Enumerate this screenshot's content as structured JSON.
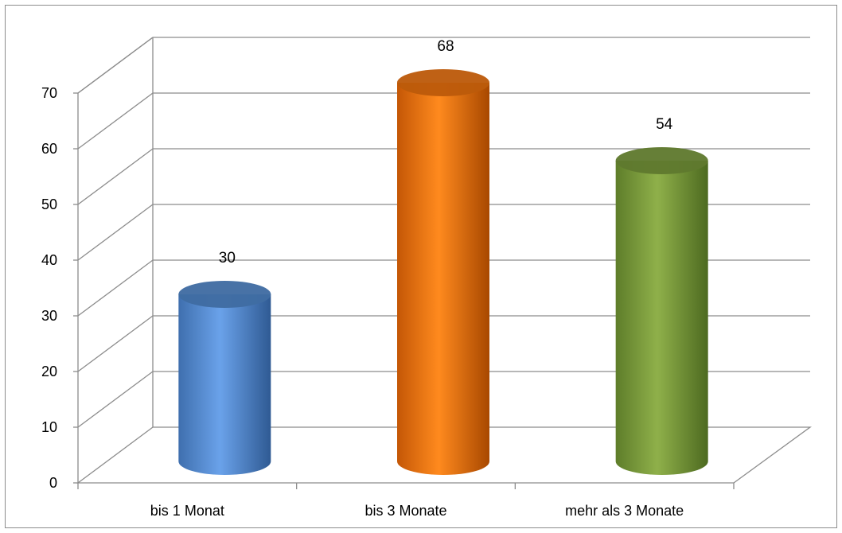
{
  "chart_data": {
    "type": "bar",
    "style": "3d-cylinder",
    "categories": [
      "bis 1 Monat",
      "bis 3 Monate",
      "mehr als 3 Monate"
    ],
    "values": [
      30,
      68,
      54
    ],
    "data_labels": [
      "30",
      "68",
      "54"
    ],
    "bar_colors": [
      "#4f86c8",
      "#e8700e",
      "#76963a"
    ],
    "title": "",
    "xlabel": "",
    "ylabel": "",
    "ylim": [
      0,
      70
    ],
    "yticks": [
      "0",
      "10",
      "20",
      "30",
      "40",
      "50",
      "60",
      "70"
    ],
    "grid": true,
    "legend": "none"
  }
}
